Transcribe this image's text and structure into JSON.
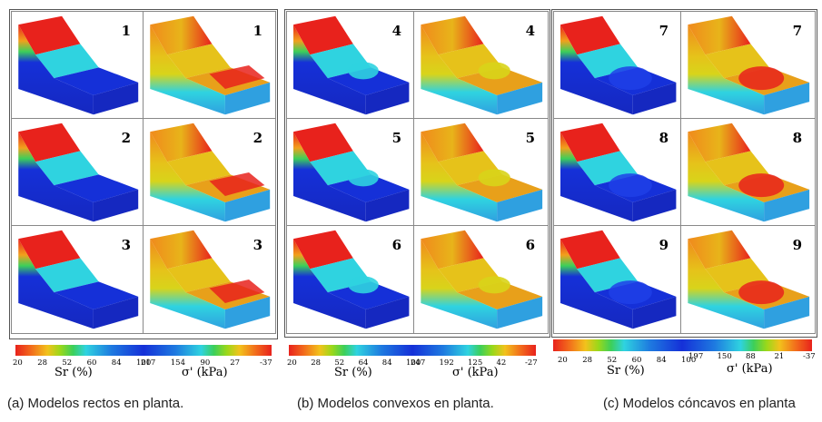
{
  "panels": [
    {
      "caption": "(a)  Modelos rectos en planta.",
      "rows": [
        "1",
        "2",
        "3"
      ],
      "sr_ticks": [
        "20",
        "28",
        "52",
        "60",
        "84",
        "100"
      ],
      "sig_ticks": [
        "217",
        "154",
        "90",
        "27",
        "-37"
      ],
      "sr_label": "Sr (%)",
      "sig_label": "σ' (kPa)"
    },
    {
      "caption": "(b)  Modelos convexos en planta.",
      "rows": [
        "4",
        "5",
        "6"
      ],
      "sr_ticks": [
        "20",
        "28",
        "52",
        "64",
        "84",
        "100"
      ],
      "sig_ticks": [
        "247",
        "192",
        "125",
        "42",
        "-27"
      ],
      "sr_label": "Sr (%)",
      "sig_label": "σ' (kPa)"
    },
    {
      "caption": "(c) Modelos cóncavos en planta",
      "rows": [
        "7",
        "8",
        "9"
      ],
      "sr_ticks": [
        "20",
        "28",
        "52",
        "60",
        "84",
        "100"
      ],
      "sig_ticks": [
        "197",
        "150",
        "88",
        "21",
        "-37"
      ],
      "sr_label": "Sr (%)",
      "sig_label": "σ' (kPa)"
    }
  ],
  "colors": {
    "red": "#e8221c",
    "orange": "#f28a1c",
    "yellow": "#e6d21a",
    "green": "#3ccf5a",
    "cyan": "#2fd3e0",
    "blue": "#1530d8"
  }
}
